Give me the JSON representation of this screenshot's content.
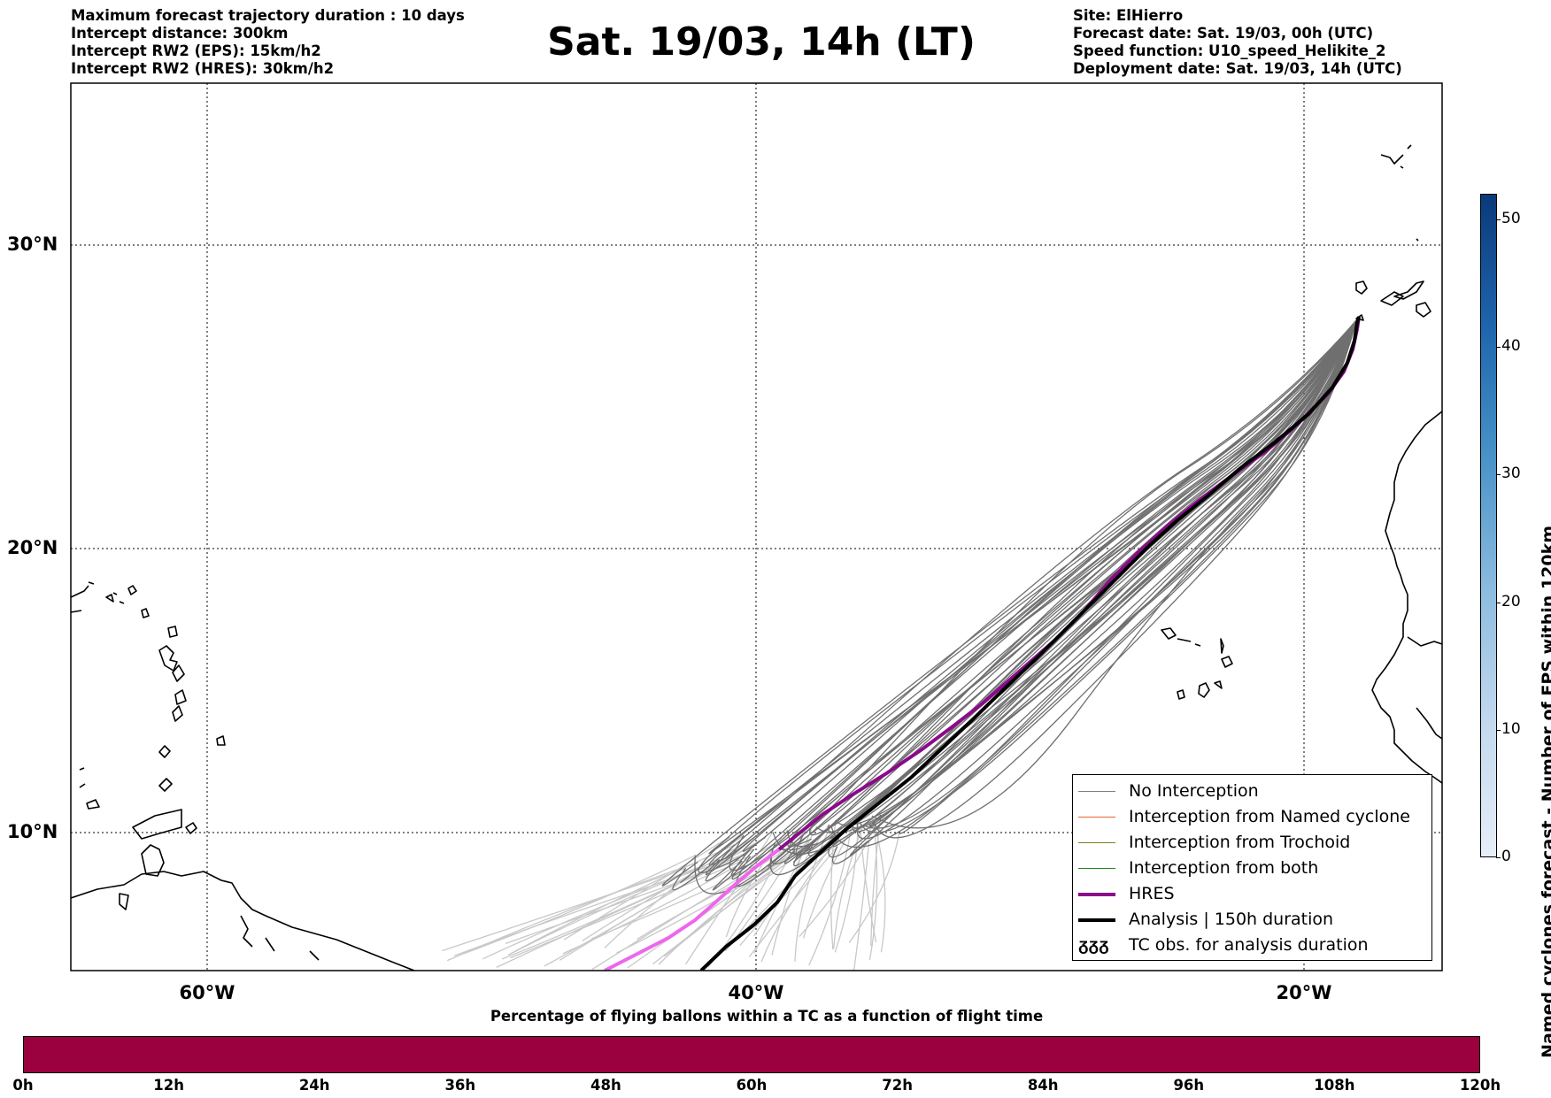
{
  "header": {
    "left_lines": [
      "Maximum forecast trajectory duration : 10 days",
      "Intercept distance: 300km",
      "Intercept RW2 (EPS):  15km/h2",
      "Intercept RW2 (HRES): 30km/h2"
    ],
    "title": "Sat. 19/03, 14h (LT)",
    "right_lines": [
      "Site: ElHierro",
      "Forecast date: Sat. 19/03, 00h (UTC)",
      "Speed function: U10_speed_Helikite_2",
      "Deployment date: Sat. 19/03, 14h (UTC)"
    ]
  },
  "map": {
    "lat_labels": [
      "30°N",
      "20°N",
      "10°N"
    ],
    "lon_labels": [
      "60°W",
      "40°W",
      "20°W"
    ],
    "colors": {
      "no_interception": "#707070",
      "no_interception_late": "#c8c8c8",
      "named_cyclone": "#e8642a",
      "trochoid": "#808020",
      "both": "#1f8a1f",
      "hres": "#8b0a8b",
      "hres_late": "#ee66ee",
      "analysis": "#000000"
    }
  },
  "legend": {
    "items": [
      {
        "label": "No Interception",
        "color": "#808080"
      },
      {
        "label": "Interception from Named cyclone",
        "color": "#e8642a"
      },
      {
        "label": "Interception from Trochoid",
        "color": "#808020"
      },
      {
        "label": "Interception from both",
        "color": "#1f8a1f"
      },
      {
        "label": "HRES",
        "color": "#8b0a8b"
      },
      {
        "label": "Analysis | 150h duration",
        "color": "#000000"
      }
    ],
    "tc_symbol": "ᵹᵹᵹ",
    "tc_label": "TC obs. for analysis duration"
  },
  "colorbar_right": {
    "label": "Named cyclones forecast - Number of EPS within 120km",
    "ticks": [
      "0",
      "10",
      "20",
      "30",
      "40",
      "50"
    ],
    "max": 52
  },
  "colorbar_bottom": {
    "title": "Percentage of flying ballons within a TC as a function of flight time",
    "ticks": [
      "0h",
      "12h",
      "24h",
      "36h",
      "48h",
      "60h",
      "72h",
      "84h",
      "96h",
      "108h",
      "120h"
    ],
    "color": "#9b003f"
  }
}
